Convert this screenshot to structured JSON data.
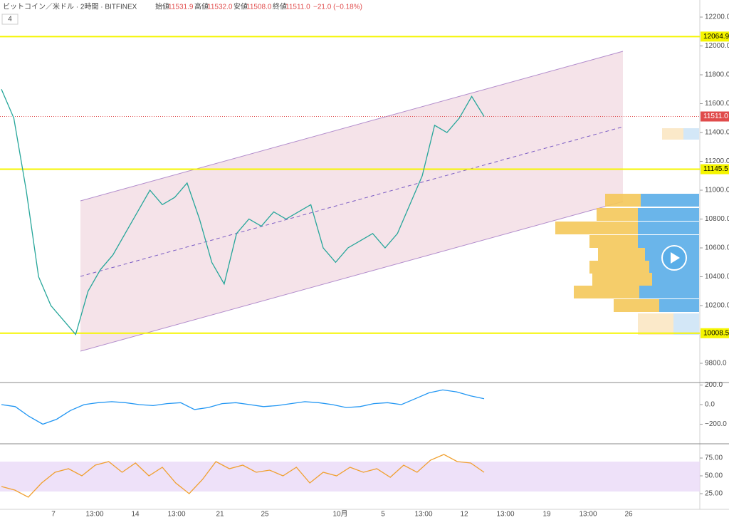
{
  "header": {
    "symbol": "ビットコイン／米ドル · 2時間 · BITFINEX",
    "open_label": "始値",
    "open": "11531.9",
    "high_label": "高値",
    "high": "11532.0",
    "low_label": "安値",
    "low": "11508.0",
    "close_label": "終値",
    "close": "11511.0",
    "change": "−21.0 (−0.18%)",
    "indicator_count": "4"
  },
  "price_axis": {
    "ticks": [
      12200,
      12000,
      11800,
      11600,
      11400,
      11200,
      11000,
      10800,
      10600,
      10400,
      10200,
      9800
    ],
    "tick_labels": [
      "12200.0",
      "12000.0",
      "11800.0",
      "11600.0",
      "11400.0",
      "11200.0",
      "11000.0",
      "10800.0",
      "10600.0",
      "10400.0",
      "10200.0",
      "9800.0"
    ]
  },
  "levels": [
    {
      "value": 12064.9,
      "label": "12064.9"
    },
    {
      "value": 11145.5,
      "label": "11145.5"
    },
    {
      "value": 10008.5,
      "label": "10008.5"
    }
  ],
  "last_price": {
    "value": 11511,
    "label": "11511.0"
  },
  "price_closes": [
    11700,
    11500,
    11000,
    10400,
    10200,
    10100,
    10000,
    10300,
    10450,
    10550,
    10700,
    10850,
    11000,
    10900,
    10950,
    11050,
    10800,
    10500,
    10350,
    10700,
    10800,
    10750,
    10850,
    10800,
    10850,
    10900,
    10600,
    10500,
    10600,
    10650,
    10700,
    10600,
    10700,
    10900,
    11100,
    11450,
    11400,
    11500,
    11650,
    11511
  ],
  "macd_axis": {
    "ticks": [
      200,
      0,
      -200
    ],
    "tick_labels": [
      "200.0",
      "0.0",
      "−200.0"
    ]
  },
  "macd_values": [
    0,
    -20,
    -120,
    -200,
    -150,
    -60,
    0,
    20,
    30,
    20,
    0,
    -10,
    10,
    20,
    -50,
    -30,
    10,
    20,
    0,
    -20,
    -10,
    10,
    30,
    20,
    0,
    -30,
    -20,
    10,
    20,
    0,
    60,
    120,
    150,
    130,
    90,
    60
  ],
  "rsi_axis": {
    "ticks": [
      75,
      50,
      25
    ],
    "tick_labels": [
      "75.00",
      "50.00",
      "25.00"
    ]
  },
  "rsi_values": [
    35,
    30,
    20,
    40,
    55,
    60,
    50,
    65,
    70,
    55,
    68,
    50,
    62,
    40,
    25,
    45,
    70,
    60,
    65,
    55,
    58,
    50,
    62,
    40,
    55,
    50,
    62,
    55,
    60,
    48,
    65,
    55,
    72,
    80,
    70,
    68,
    55
  ],
  "time_axis": [
    "7",
    "13:00",
    "14",
    "13:00",
    "21",
    "25",
    "10月",
    "5",
    "13:00",
    "12",
    "13:00",
    "19",
    "13:00",
    "26"
  ]
}
